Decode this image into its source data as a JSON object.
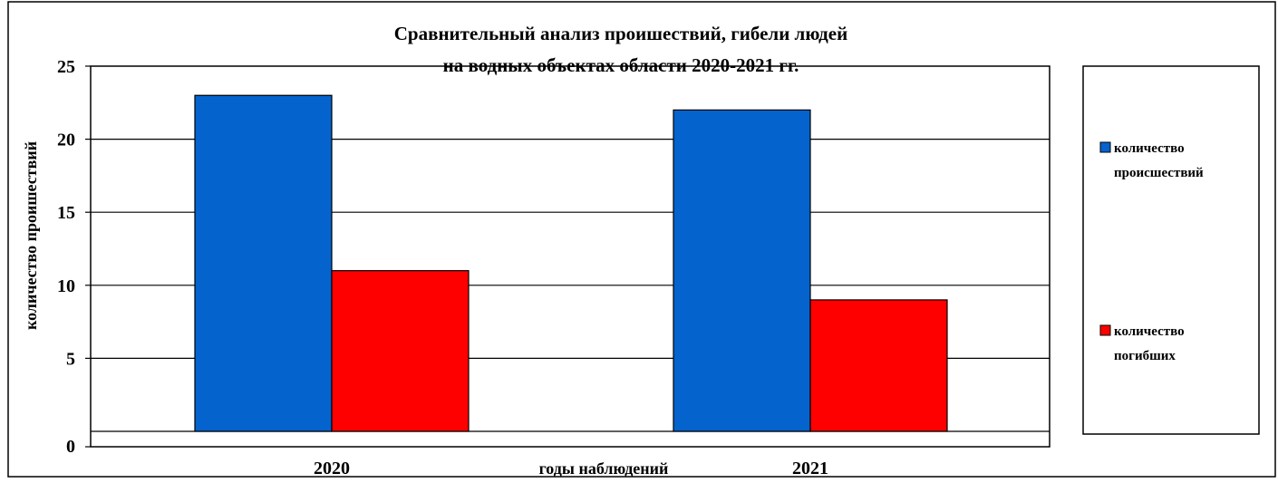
{
  "chart_data": {
    "type": "bar",
    "title": [
      "Сравнительный анализ проишествий, гибели людей",
      "на водных объектах области 2020-2021 гг."
    ],
    "xlabel": "годы наблюдений",
    "ylabel": "количество проишествий",
    "categories": [
      "2020",
      "2021"
    ],
    "series": [
      {
        "name": [
          "количество",
          "происшествий"
        ],
        "values": [
          23,
          22
        ],
        "color": "#0563CE"
      },
      {
        "name": [
          "количество",
          "погибших"
        ],
        "values": [
          11,
          9
        ],
        "color": "#FF0000"
      }
    ],
    "ylim": [
      0,
      25
    ],
    "yticks": [
      0,
      5,
      10,
      15,
      20,
      25
    ],
    "grid": true,
    "legend_position": "right"
  }
}
